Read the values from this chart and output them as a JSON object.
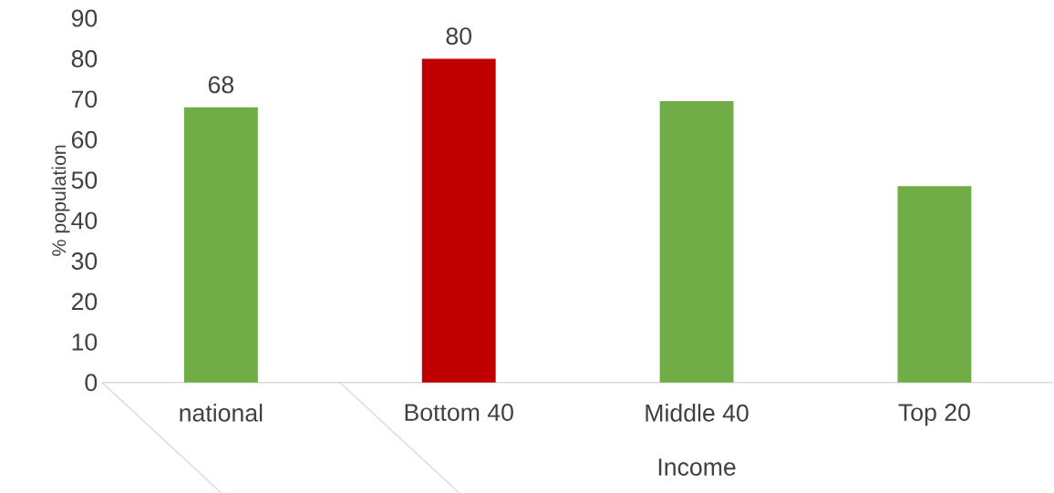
{
  "chart_data": {
    "type": "bar",
    "xlabel": "Income",
    "ylabel": "% population",
    "categories": [
      "national",
      "Bottom 40",
      "Middle 40",
      "Top 20"
    ],
    "values": [
      68,
      80,
      69.5,
      48.5
    ],
    "colors": [
      "#70ad47",
      "#c00000",
      "#70ad47",
      "#70ad47"
    ],
    "value_labels": [
      "68",
      "80",
      null,
      null
    ],
    "ylim": [
      0,
      90
    ],
    "yticks": [
      0,
      10,
      20,
      30,
      40,
      50,
      60,
      70,
      80,
      90
    ]
  }
}
